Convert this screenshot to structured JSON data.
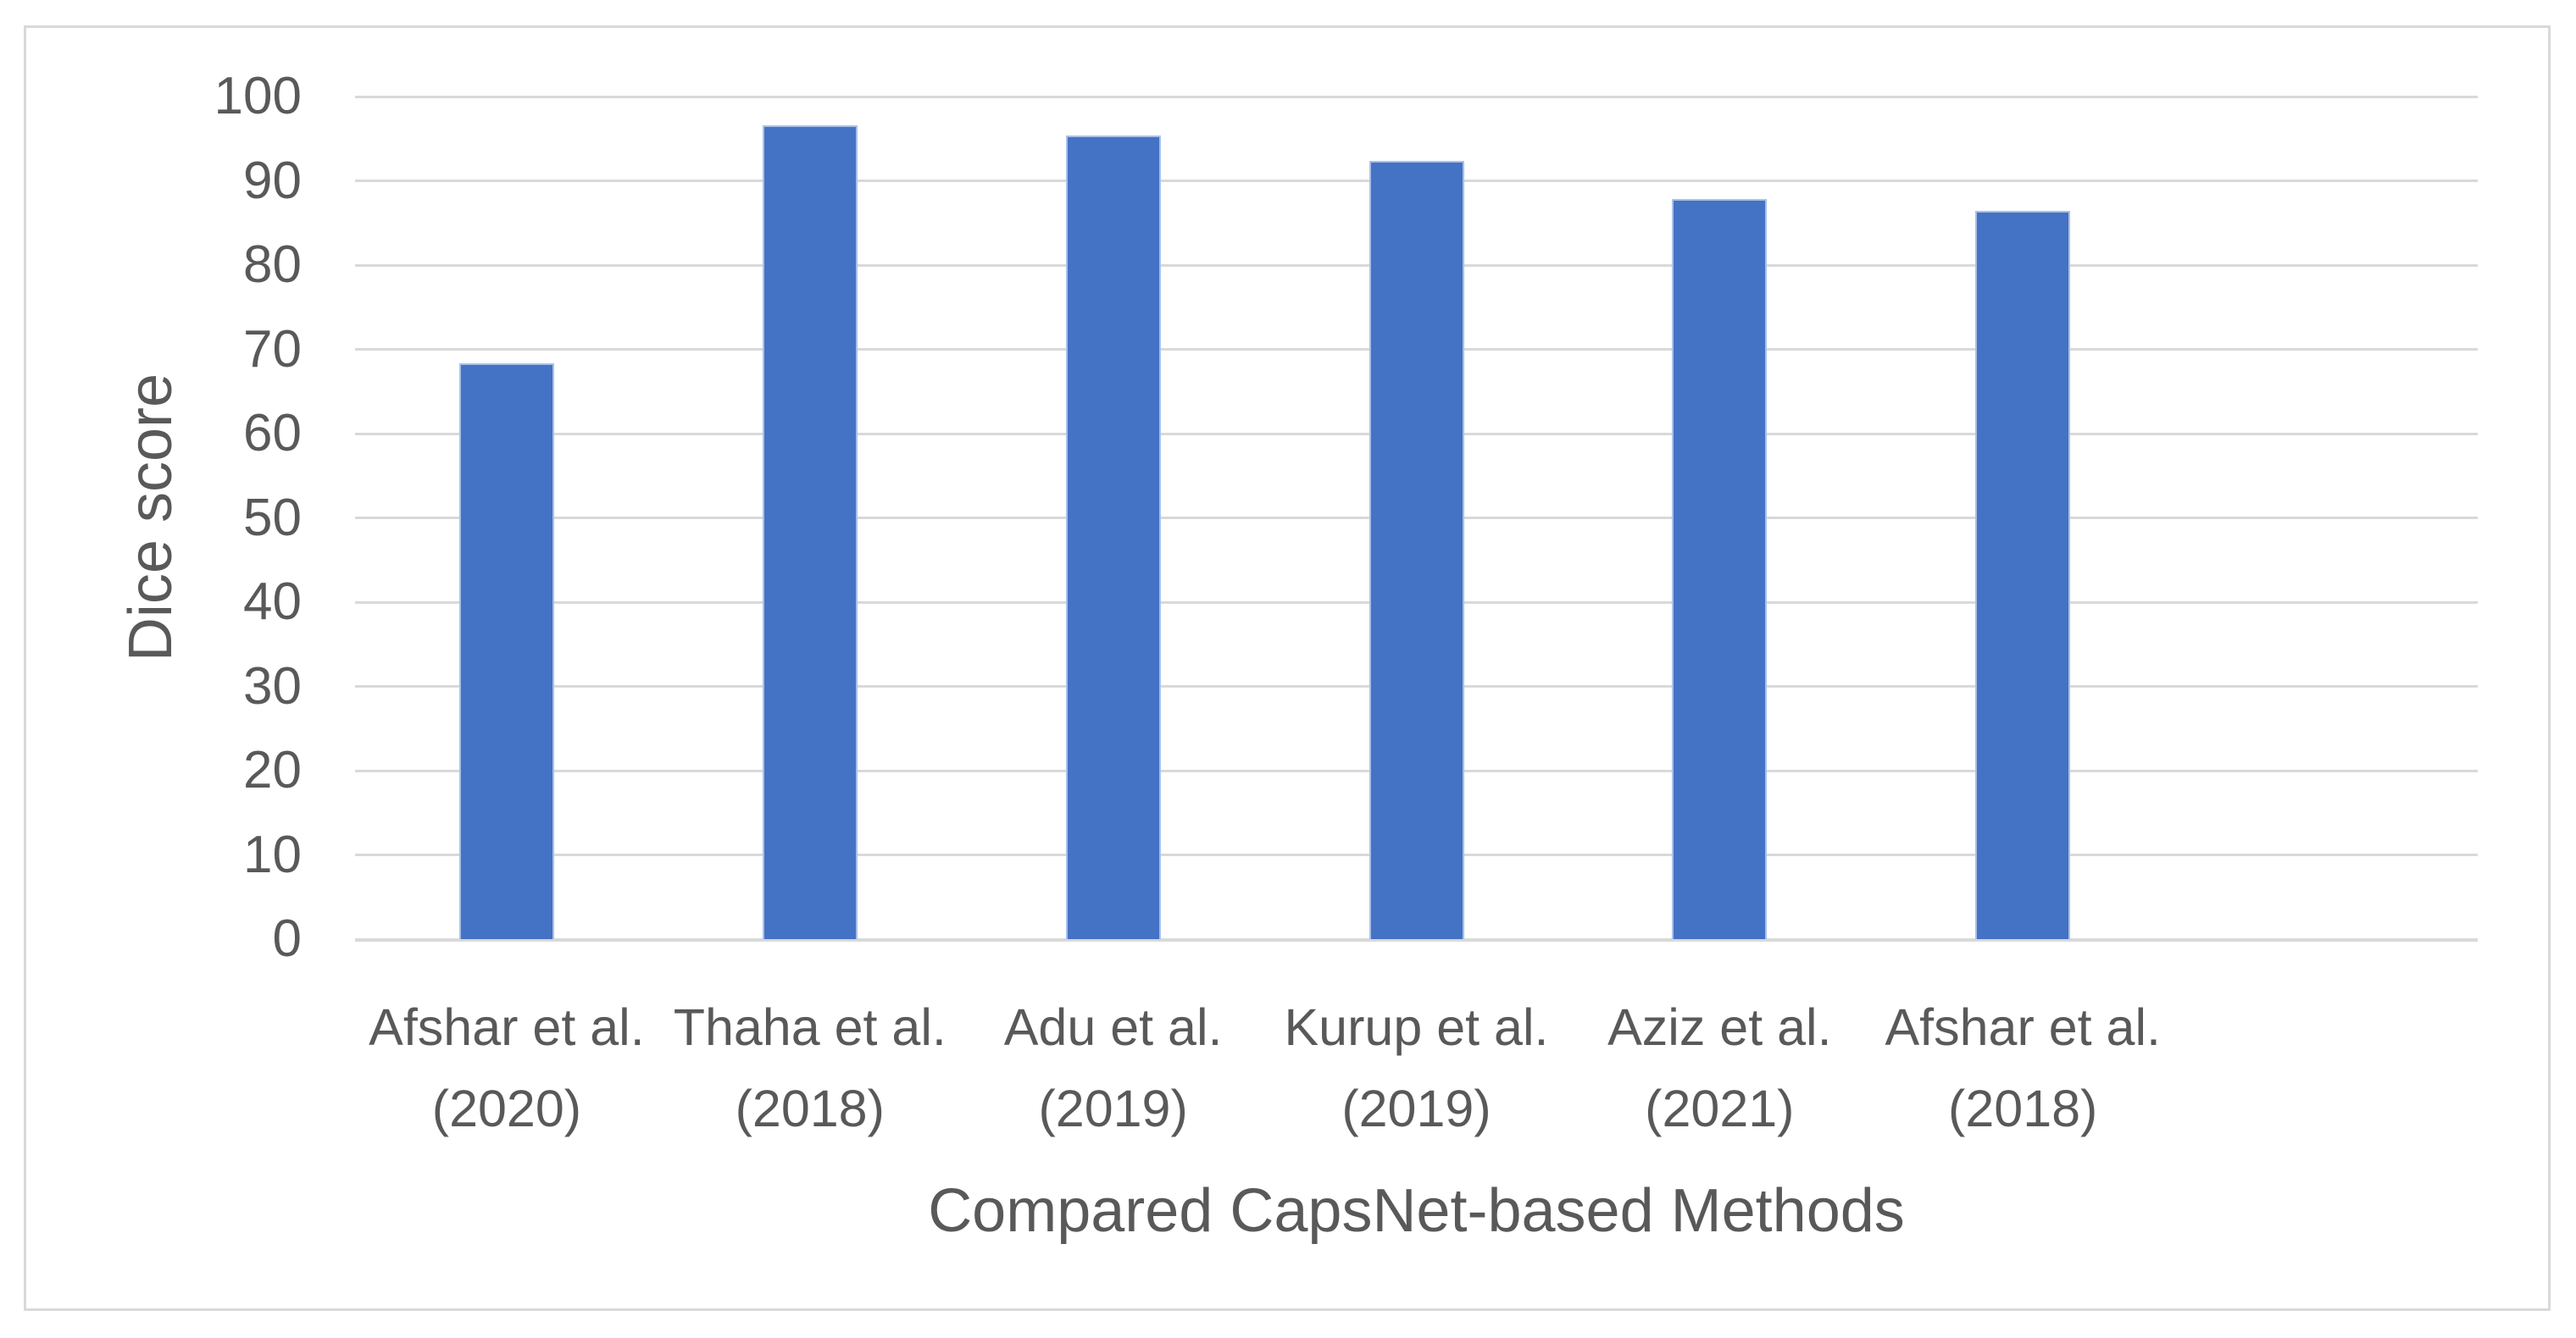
{
  "chart_data": {
    "type": "bar",
    "title": "",
    "categories": [
      [
        "Afshar et al.",
        "(2020)"
      ],
      [
        "Thaha et al.",
        "(2018)"
      ],
      [
        "Adu et al.",
        "(2019)"
      ],
      [
        "Kurup et al.",
        "(2019)"
      ],
      [
        "Aziz et al.",
        "(2021)"
      ],
      [
        "Afshar et al.",
        "(2018)"
      ]
    ],
    "values": [
      68.3,
      96.6,
      95.4,
      92.4,
      87.8,
      86.4
    ],
    "xlabel": "Compared CapsNet-based Methods",
    "ylabel": "Dice score",
    "ylim": [
      0,
      100
    ],
    "ytick_step": 10,
    "yticks": [
      0,
      10,
      20,
      30,
      40,
      50,
      60,
      70,
      80,
      90,
      100
    ],
    "grid": true,
    "legend": "none",
    "x_slots": 7,
    "colors": {
      "bar": "#4472C4",
      "bar_edge": "#A9C0E8",
      "gridline": "#D9D9D9",
      "axis_line": "#D9D9D9",
      "text": "#595959",
      "frame_border": "#D9D9D9",
      "background": "#FFFFFF"
    }
  }
}
